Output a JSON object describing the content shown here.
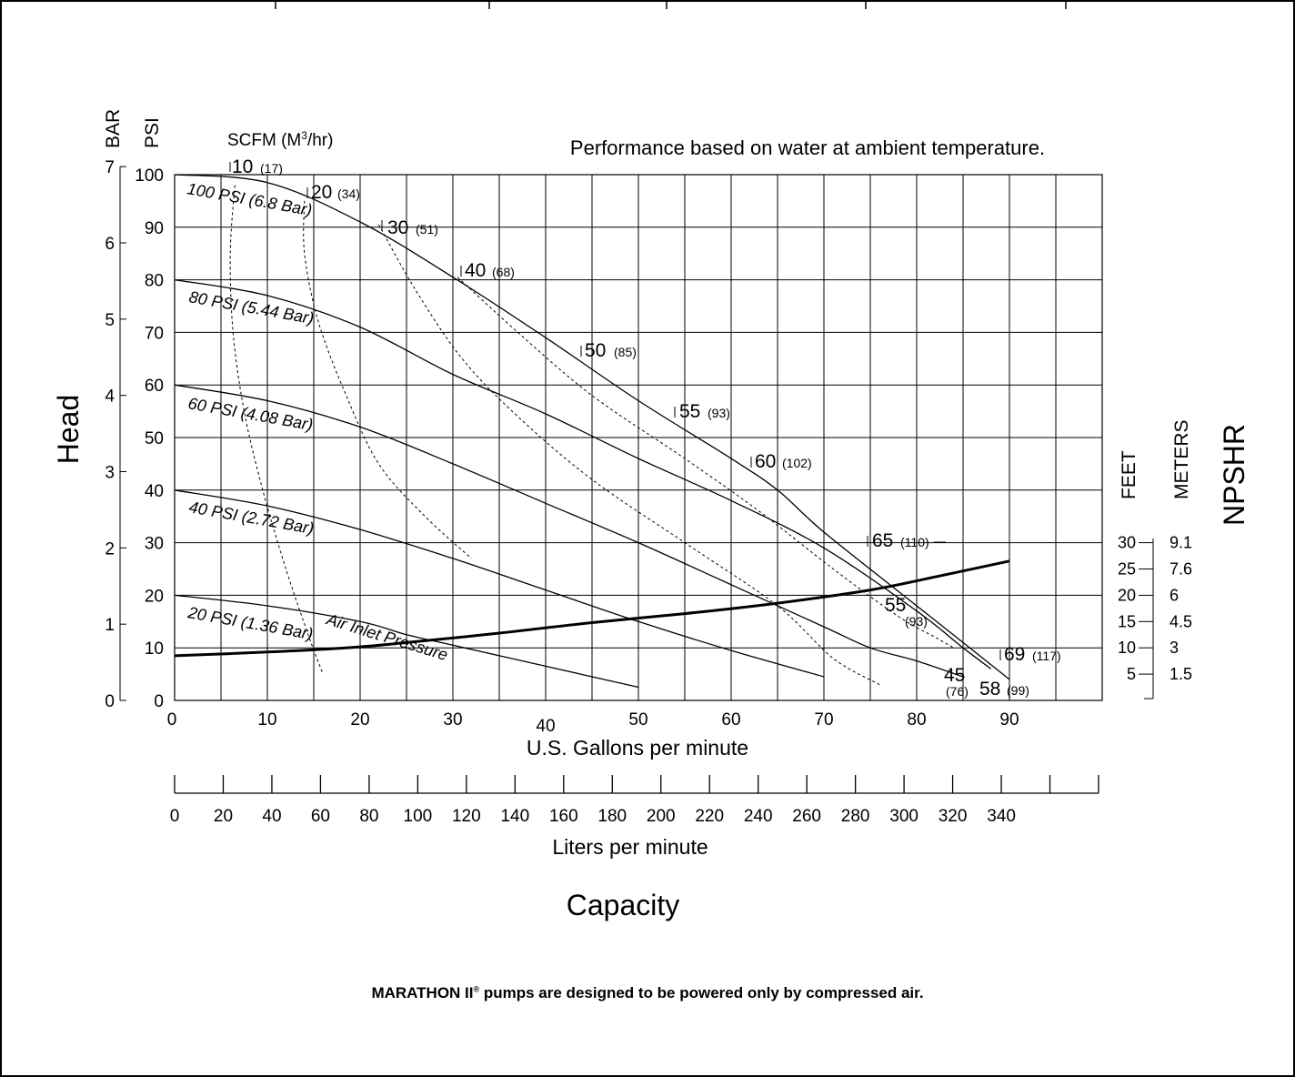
{
  "chart_data": {
    "type": "line",
    "title": "Performance based on water at ambient temperature.",
    "axis_label_head": "Head",
    "axis_label_capacity": "Capacity",
    "xlabel": "U.S. Gallons per minute",
    "xlabel_lpm": "Liters per minute",
    "unit_bar": "BAR",
    "unit_psi": "PSI",
    "unit_feet": "FEET",
    "unit_meters": "METERS",
    "npshr_label": "NPSHR",
    "air_inlet_label": "Air Inlet Pressure",
    "scfm_header_main": "SCFM (M",
    "scfm_header_sup": "3",
    "scfm_header_end": "/hr)",
    "xlim": [
      0,
      100
    ],
    "ylim_psi": [
      0,
      100
    ],
    "x_ticks_gpm": [
      0,
      10,
      20,
      30,
      40,
      50,
      60,
      70,
      80,
      90
    ],
    "psi_ticks": [
      0,
      10,
      20,
      30,
      40,
      50,
      60,
      70,
      80,
      90,
      100
    ],
    "bar_ticks": [
      0,
      1,
      2,
      3,
      4,
      5,
      6,
      7
    ],
    "lpm_ticks": [
      0,
      20,
      40,
      60,
      80,
      100,
      120,
      140,
      160,
      180,
      200,
      220,
      240,
      260,
      280,
      300,
      320,
      340
    ],
    "npshr_ticks": [
      {
        "feet": "30",
        "meters": "9.1"
      },
      {
        "feet": "25",
        "meters": "7.6"
      },
      {
        "feet": "20",
        "meters": "6"
      },
      {
        "feet": "15",
        "meters": "4.5"
      },
      {
        "feet": "10",
        "meters": "3"
      },
      {
        "feet": "5",
        "meters": "1.5"
      }
    ],
    "pressure_curves": [
      {
        "label": "100 PSI (6.8 Bar)",
        "points": [
          [
            0,
            100
          ],
          [
            10,
            98.5
          ],
          [
            20,
            91
          ],
          [
            30,
            80.5
          ],
          [
            40,
            69
          ],
          [
            50,
            57
          ],
          [
            60,
            46
          ],
          [
            65,
            40
          ],
          [
            70,
            32
          ],
          [
            80,
            18
          ],
          [
            85,
            11
          ],
          [
            90,
            4
          ]
        ]
      },
      {
        "label": "80 PSI (5.44 Bar)",
        "points": [
          [
            0,
            80
          ],
          [
            10,
            77
          ],
          [
            20,
            71
          ],
          [
            30,
            62
          ],
          [
            40,
            54.5
          ],
          [
            50,
            46
          ],
          [
            60,
            38
          ],
          [
            70,
            29
          ],
          [
            80,
            17
          ],
          [
            85,
            10
          ],
          [
            88,
            6
          ]
        ]
      },
      {
        "label": "60 PSI (4.08 Bar)",
        "points": [
          [
            0,
            60
          ],
          [
            10,
            57
          ],
          [
            20,
            52
          ],
          [
            30,
            45
          ],
          [
            40,
            37.5
          ],
          [
            50,
            30
          ],
          [
            60,
            22
          ],
          [
            70,
            14
          ],
          [
            75,
            10
          ],
          [
            80,
            7.5
          ],
          [
            85,
            4.5
          ]
        ]
      },
      {
        "label": "40 PSI (2.72 Bar)",
        "points": [
          [
            0,
            40
          ],
          [
            10,
            37
          ],
          [
            20,
            32.5
          ],
          [
            30,
            27
          ],
          [
            40,
            21
          ],
          [
            50,
            15
          ],
          [
            60,
            9.5
          ],
          [
            70,
            4.5
          ]
        ]
      },
      {
        "label": "20 PSI (1.36 Bar)",
        "points": [
          [
            0,
            20
          ],
          [
            10,
            18
          ],
          [
            20,
            15
          ],
          [
            25,
            12.5
          ],
          [
            30,
            10.5
          ],
          [
            40,
            6.5
          ],
          [
            50,
            2.5
          ]
        ]
      }
    ],
    "scfm_curves": [
      {
        "label": "10",
        "m3hr": "(17)",
        "points": [
          [
            6.5,
            98
          ],
          [
            6,
            85
          ],
          [
            6.3,
            70
          ],
          [
            7.5,
            55
          ],
          [
            9.5,
            40
          ],
          [
            12,
            25
          ],
          [
            14.5,
            12
          ],
          [
            16,
            5
          ]
        ]
      },
      {
        "label": "20",
        "m3hr": "(34)",
        "points": [
          [
            14,
            95
          ],
          [
            14,
            85
          ],
          [
            15.5,
            72
          ],
          [
            18.5,
            58
          ],
          [
            22,
            45
          ],
          [
            27,
            35
          ],
          [
            32,
            27
          ]
        ]
      },
      {
        "label": "30",
        "m3hr": "(51)",
        "points": [
          [
            22,
            90.5
          ],
          [
            26,
            78
          ],
          [
            31,
            65
          ],
          [
            37,
            54
          ],
          [
            45,
            42
          ],
          [
            55,
            30
          ],
          [
            65,
            18
          ],
          [
            71,
            8
          ],
          [
            76,
            3
          ]
        ]
      },
      {
        "label": "40",
        "m3hr": "(68)",
        "points": [
          [
            30.5,
            80.5
          ],
          [
            37,
            70
          ],
          [
            45,
            58
          ],
          [
            55,
            46
          ],
          [
            63,
            36
          ],
          [
            71,
            25
          ],
          [
            78,
            16
          ],
          [
            82,
            12
          ],
          [
            84,
            10
          ]
        ]
      }
    ],
    "scfm_point_labels": [
      {
        "label": "10",
        "m3hr": "(17)"
      },
      {
        "label": "20",
        "m3hr": "(34)"
      },
      {
        "label": "30",
        "m3hr": "(51)"
      },
      {
        "label": "40",
        "m3hr": "(68)"
      },
      {
        "label": "50",
        "m3hr": "(85)"
      },
      {
        "label": "55",
        "m3hr": "(93)"
      },
      {
        "label": "60",
        "m3hr": "(102)"
      },
      {
        "label": "65",
        "m3hr": "(110)"
      },
      {
        "label": "55",
        "m3hr": "(93)"
      },
      {
        "label": "69",
        "m3hr": "(117)"
      },
      {
        "label": "45",
        "m3hr": "(76)"
      },
      {
        "label": "58",
        "m3hr": "(99)"
      }
    ],
    "npshr_curve": {
      "points": [
        [
          0,
          8.5
        ],
        [
          10,
          9.2
        ],
        [
          18.5,
          10
        ],
        [
          25,
          11
        ],
        [
          35,
          12.8
        ],
        [
          45,
          14.8
        ],
        [
          55,
          16.5
        ],
        [
          65,
          18.5
        ],
        [
          75,
          21
        ],
        [
          82,
          23.5
        ],
        [
          90,
          26.5
        ]
      ]
    },
    "grid": true
  },
  "footer": {
    "brand": "MARATHON II",
    "registered": "®",
    "text": " pumps are designed to be powered only by compressed air."
  }
}
